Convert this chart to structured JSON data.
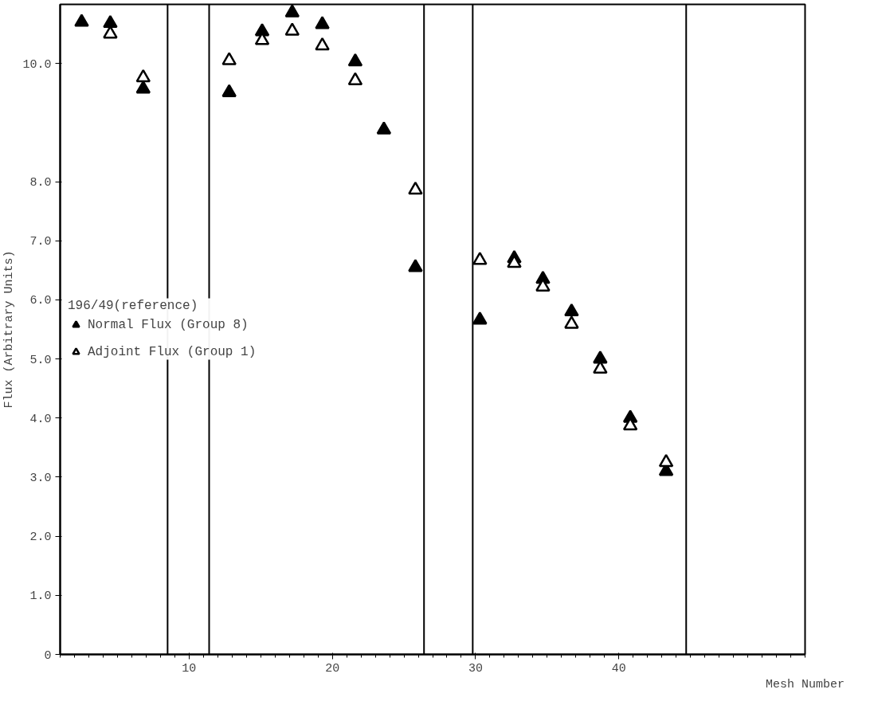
{
  "chart_data": {
    "type": "scatter",
    "xlabel": "Mesh Number",
    "ylabel": "Flux (Arbitrary Units)",
    "legend_title": "196/49(reference)",
    "x": [
      2.5,
      4.5,
      6.8,
      12.8,
      15.1,
      17.2,
      19.3,
      21.6,
      23.6,
      25.8,
      30.3,
      32.7,
      34.7,
      36.7,
      38.7,
      40.8,
      43.3
    ],
    "series": [
      {
        "name": "Normal Flux (Group 8)",
        "color": "#000000",
        "marker": "triangle",
        "values": [
          10.7,
          10.68,
          9.57,
          9.51,
          10.54,
          10.86,
          10.66,
          10.03,
          8.88,
          6.55,
          5.66,
          6.7,
          6.35,
          5.8,
          5.0,
          4.0,
          3.1
        ]
      },
      {
        "name": "Adjoint Flux (Group 1)",
        "color": "#000000",
        "marker": "triangle",
        "values": [
          null,
          10.5,
          9.76,
          10.05,
          10.39,
          10.55,
          10.3,
          9.71,
          null,
          7.86,
          6.67,
          6.62,
          6.22,
          5.59,
          4.83,
          3.87,
          3.25
        ]
      }
    ],
    "xlim": [
      1,
      53
    ],
    "xticks": [
      10,
      20,
      30,
      40
    ],
    "ylim": [
      0,
      11
    ],
    "yticks": [
      0,
      {
        "value": 1,
        "label": "1.0"
      },
      {
        "value": 2,
        "label": "2.0"
      },
      {
        "value": 3,
        "label": "3.0"
      },
      {
        "value": 4,
        "label": "4.0"
      },
      {
        "value": 5,
        "label": "5.0"
      },
      {
        "value": 6,
        "label": "6.0"
      },
      {
        "value": 7,
        "label": "7.0"
      },
      {
        "value": 8,
        "label": "8.0"
      },
      {
        "value": 10,
        "label": "10.0"
      }
    ],
    "ref_lines": [
      {
        "axis": "x",
        "value": 8.5,
        "color": "#000000"
      },
      {
        "axis": "x",
        "value": 11.4,
        "color": "#000000"
      },
      {
        "axis": "x",
        "value": 26.4,
        "color": "#000000"
      },
      {
        "axis": "x",
        "value": 29.8,
        "color": "#000000"
      },
      {
        "axis": "x",
        "value": 44.7,
        "color": "#000000"
      }
    ],
    "grid": false,
    "legend": "left"
  }
}
